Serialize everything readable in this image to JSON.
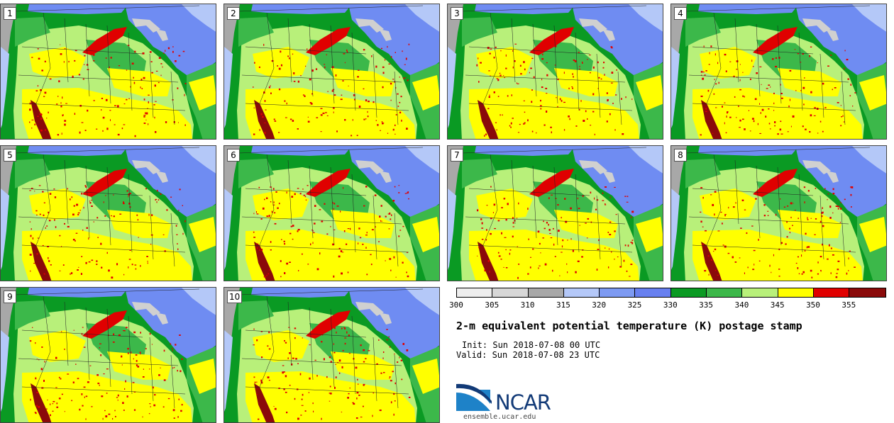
{
  "panels": [
    {
      "number": "1"
    },
    {
      "number": "2"
    },
    {
      "number": "3"
    },
    {
      "number": "4"
    },
    {
      "number": "5"
    },
    {
      "number": "6"
    },
    {
      "number": "7"
    },
    {
      "number": "8"
    },
    {
      "number": "9"
    },
    {
      "number": "10"
    }
  ],
  "colorbar": {
    "colors": [
      "#eeeeee",
      "#d7d7d7",
      "#a8a8a8",
      "#b4c8f8",
      "#7d9af2",
      "#6880f0",
      "#0a9a23",
      "#3cb84a",
      "#b8f07a",
      "#ffff00",
      "#e00000",
      "#8a0a0a"
    ],
    "ticks": [
      "300",
      "305",
      "310",
      "315",
      "320",
      "325",
      "330",
      "335",
      "340",
      "345",
      "350",
      "355"
    ]
  },
  "title": "2-m equivalent potential temperature (K) postage stamp",
  "init_label": "Init: Sun 2018-07-08 00 UTC",
  "valid_label": "Valid: Sun 2018-07-08 23 UTC",
  "logo": {
    "text": "NCAR",
    "url": "ensemble.ucar.edu"
  },
  "map_colors": {
    "ocean_gray": "#a8a8a8",
    "light_blue": "#b4c8f8",
    "blue": "#6f8cf2",
    "dark_green": "#0a9a23",
    "green": "#3cb84a",
    "light_green": "#b8f07a",
    "yellow": "#ffff00",
    "red": "#e00000",
    "dark_red": "#8a0a0a",
    "lakes": "#d0d0d0"
  }
}
